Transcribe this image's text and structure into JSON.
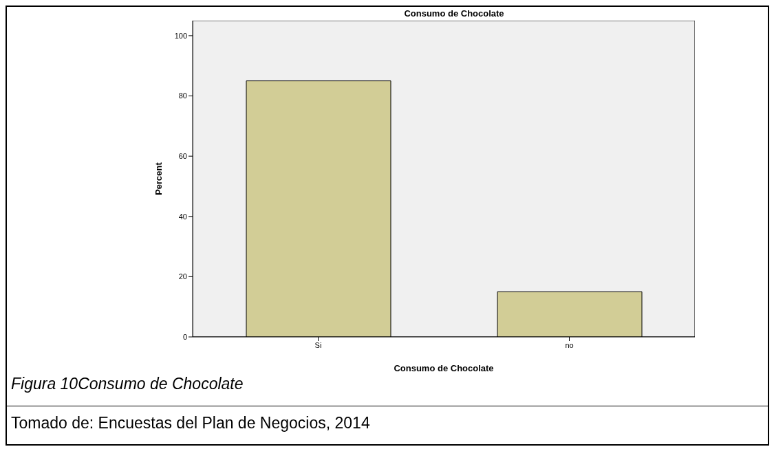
{
  "chart_data": {
    "type": "bar",
    "title": "Consumo de Chocolate",
    "xlabel": "Consumo de Chocolate",
    "ylabel": "Percent",
    "categories": [
      "Si",
      "no"
    ],
    "values": [
      85,
      15
    ],
    "color": "#d2cd96",
    "ylim": [
      0,
      105
    ],
    "yticks": [
      0,
      20,
      40,
      60,
      80,
      100
    ],
    "grid": false,
    "annotations": [
      "Figura 10Consumo de Chocolate",
      "Tomado de: Encuestas del Plan de Negocios, 2014"
    ]
  }
}
